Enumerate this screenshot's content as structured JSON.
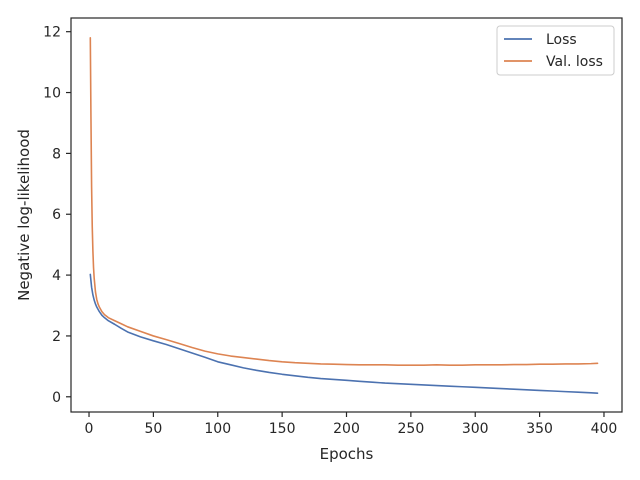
{
  "chart_data": {
    "type": "line",
    "title": "",
    "xlabel": "Epochs",
    "ylabel": "Negative log-likelihood",
    "xlim": [
      -14,
      414
    ],
    "ylim": [
      -0.5,
      12.45
    ],
    "xticks": [
      0,
      50,
      100,
      150,
      200,
      250,
      300,
      350,
      400
    ],
    "yticks": [
      0,
      2,
      4,
      6,
      8,
      10,
      12
    ],
    "grid": false,
    "legend_position": "top-right",
    "series": [
      {
        "name": "Loss",
        "color": "#4c72b0",
        "x": [
          1,
          2,
          3,
          4,
          5,
          6,
          8,
          10,
          12,
          15,
          20,
          25,
          30,
          40,
          50,
          60,
          70,
          80,
          90,
          100,
          110,
          120,
          130,
          140,
          150,
          160,
          170,
          180,
          190,
          200,
          210,
          220,
          230,
          240,
          250,
          260,
          270,
          280,
          290,
          300,
          310,
          320,
          330,
          340,
          350,
          360,
          370,
          380,
          390,
          395
        ],
        "values": [
          4.02,
          3.6,
          3.35,
          3.18,
          3.05,
          2.95,
          2.8,
          2.68,
          2.6,
          2.5,
          2.38,
          2.25,
          2.13,
          1.97,
          1.84,
          1.72,
          1.58,
          1.44,
          1.3,
          1.15,
          1.05,
          0.95,
          0.87,
          0.8,
          0.74,
          0.69,
          0.64,
          0.6,
          0.57,
          0.54,
          0.51,
          0.48,
          0.45,
          0.43,
          0.41,
          0.39,
          0.37,
          0.35,
          0.33,
          0.31,
          0.29,
          0.27,
          0.25,
          0.23,
          0.21,
          0.19,
          0.17,
          0.15,
          0.13,
          0.12
        ]
      },
      {
        "name": "Val. loss",
        "color": "#dd8452",
        "x": [
          1,
          1.5,
          2,
          2.5,
          3,
          3.5,
          4,
          5,
          6,
          7,
          8,
          10,
          12,
          15,
          20,
          25,
          30,
          40,
          50,
          60,
          70,
          80,
          90,
          100,
          110,
          120,
          130,
          140,
          150,
          160,
          170,
          180,
          190,
          200,
          210,
          220,
          230,
          240,
          250,
          260,
          270,
          280,
          290,
          300,
          310,
          320,
          330,
          340,
          350,
          360,
          370,
          380,
          390,
          395
        ],
        "values": [
          11.8,
          9.2,
          6.9,
          5.6,
          4.8,
          4.25,
          3.9,
          3.45,
          3.2,
          3.05,
          2.95,
          2.8,
          2.7,
          2.6,
          2.5,
          2.4,
          2.3,
          2.15,
          2.0,
          1.88,
          1.75,
          1.62,
          1.5,
          1.41,
          1.34,
          1.29,
          1.24,
          1.19,
          1.15,
          1.12,
          1.1,
          1.08,
          1.07,
          1.06,
          1.05,
          1.05,
          1.05,
          1.04,
          1.04,
          1.04,
          1.05,
          1.04,
          1.04,
          1.05,
          1.05,
          1.05,
          1.06,
          1.06,
          1.07,
          1.07,
          1.08,
          1.08,
          1.09,
          1.1
        ]
      }
    ]
  }
}
